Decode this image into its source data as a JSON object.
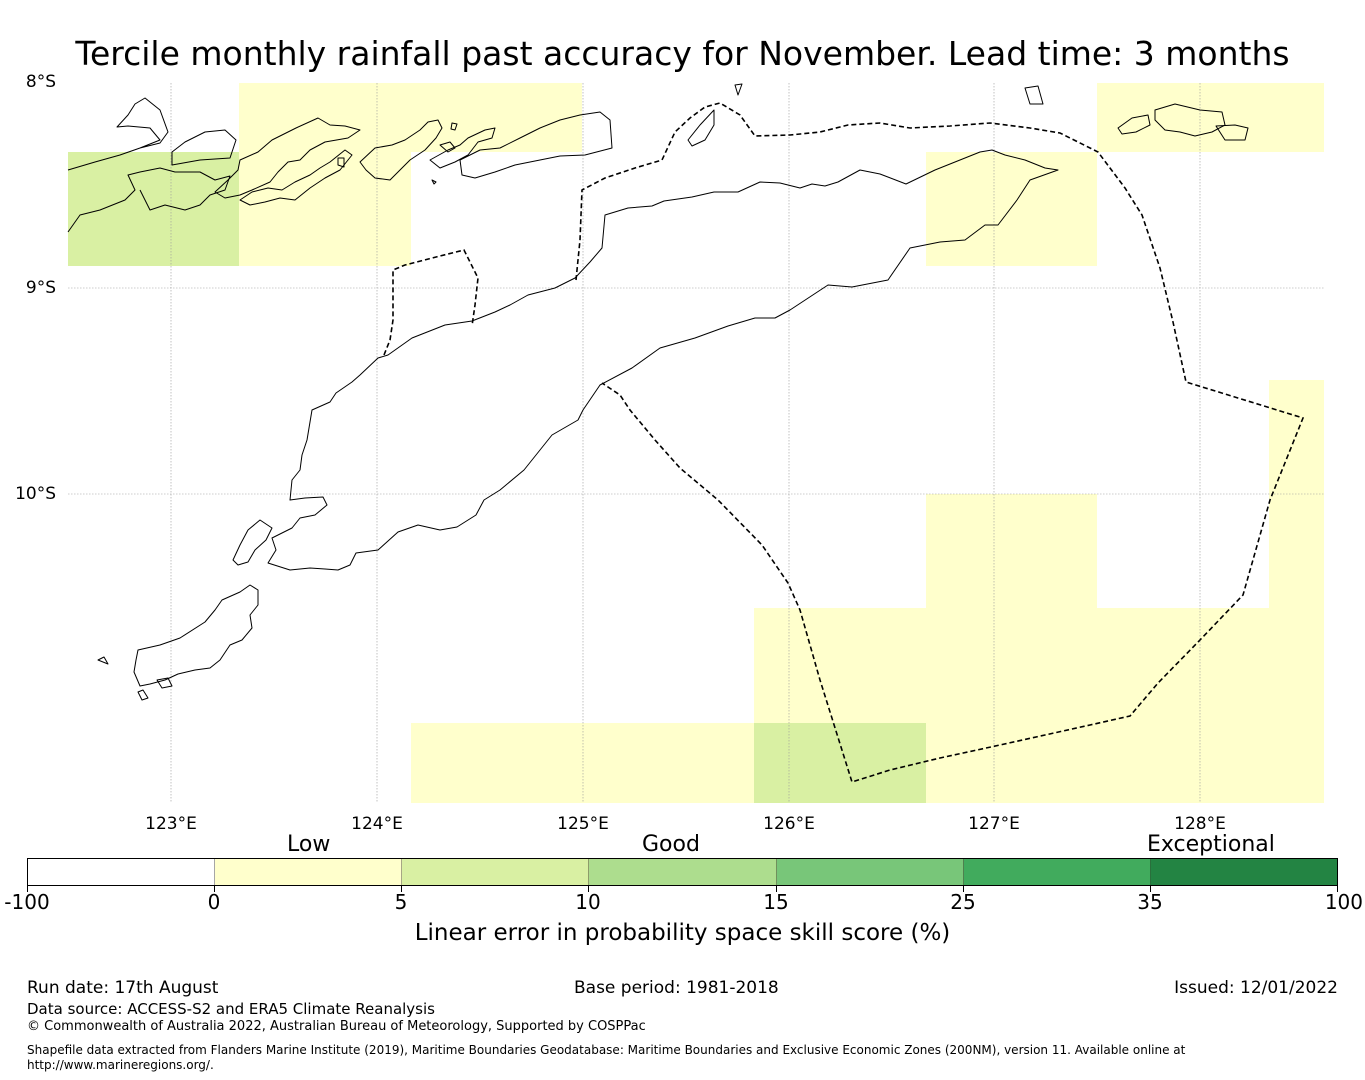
{
  "title": "Tercile monthly rainfall past accuracy for November. Lead time: 3 months",
  "map": {
    "lat_labels": [
      "8°S",
      "9°S",
      "10°S"
    ],
    "lon_labels": [
      "123°E",
      "124°E",
      "125°E",
      "126°E",
      "127°E",
      "128°E"
    ]
  },
  "colorbar": {
    "categories": {
      "low": "Low",
      "good": "Good",
      "exceptional": "Exceptional"
    },
    "ticks": [
      "-100",
      "0",
      "5",
      "10",
      "15",
      "25",
      "35",
      "100"
    ],
    "colors": [
      "#ffffff",
      "#ffffcc",
      "#d9f0a3",
      "#addd8e",
      "#78c679",
      "#41ab5d",
      "#238443"
    ],
    "label": "Linear error in probability space skill score (%)"
  },
  "footer": {
    "run_date": "Run date: 17th August",
    "base_period": "Base period: 1981-2018",
    "issued": "Issued: 12/01/2022",
    "data_source": "Data source: ACCESS-S2 and ERA5 Climate Reanalysis",
    "copyright": "© Commonwealth of Australia 2022, Australian Bureau of Meteorology, Supported by COSPPac",
    "shapefile_line1": "Shapefile data extracted from Flanders Marine Institute (2019), Maritime Boundaries Geodatabase: Maritime Boundaries and Exclusive Economic Zones (200NM), version 11. Available online at",
    "shapefile_line2": "http://www.marineregions.org/."
  }
}
